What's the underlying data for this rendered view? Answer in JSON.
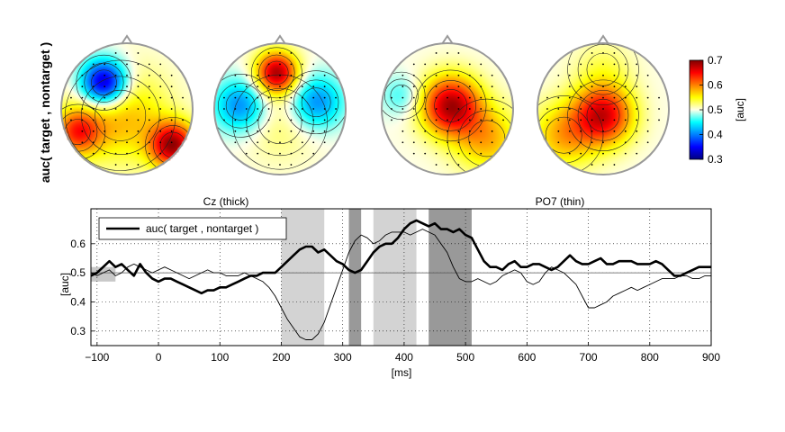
{
  "chart_data": [
    {
      "type": "heatmap",
      "kind": "scalp-topography",
      "ylabel": "auc( target , nontarget )",
      "colorbar": {
        "label": "[auc]",
        "ticks": [
          "0.3",
          "0.4",
          "0.5",
          "0.6",
          "0.7"
        ],
        "range": [
          0.3,
          0.7
        ],
        "colormap": "jet"
      },
      "maps": [
        {
          "blobs": [
            {
              "x": -0.35,
              "y": 0.4,
              "v": 0.3,
              "s": 0.35
            },
            {
              "x": 0.7,
              "y": -0.55,
              "v": 0.68,
              "s": 0.35
            },
            {
              "x": -0.1,
              "y": -0.1,
              "v": 0.58,
              "s": 0.7
            },
            {
              "x": -0.75,
              "y": -0.35,
              "v": 0.62,
              "s": 0.35
            }
          ]
        },
        {
          "blobs": [
            {
              "x": -0.05,
              "y": 0.55,
              "v": 0.68,
              "s": 0.32
            },
            {
              "x": -0.6,
              "y": 0.05,
              "v": 0.4,
              "s": 0.4
            },
            {
              "x": 0.55,
              "y": 0.1,
              "v": 0.4,
              "s": 0.4
            },
            {
              "x": 0.0,
              "y": -0.2,
              "v": 0.53,
              "s": 0.6
            }
          ]
        },
        {
          "blobs": [
            {
              "x": 0.05,
              "y": 0.05,
              "v": 0.68,
              "s": 0.45
            },
            {
              "x": -0.7,
              "y": 0.2,
              "v": 0.46,
              "s": 0.3
            },
            {
              "x": 0.6,
              "y": -0.45,
              "v": 0.58,
              "s": 0.5
            }
          ]
        },
        {
          "blobs": [
            {
              "x": 0.0,
              "y": -0.1,
              "v": 0.66,
              "s": 0.45
            },
            {
              "x": 0.0,
              "y": 0.6,
              "v": 0.53,
              "s": 0.45
            },
            {
              "x": -0.6,
              "y": -0.4,
              "v": 0.58,
              "s": 0.5
            }
          ]
        }
      ]
    },
    {
      "type": "line",
      "titles": [
        "Cz (thick)",
        "PO7 (thin)"
      ],
      "xlabel": "[ms]",
      "ylabel": "[auc]",
      "xlim": [
        -110,
        900
      ],
      "ylim": [
        0.25,
        0.72
      ],
      "xticks": [
        -100,
        0,
        100,
        200,
        300,
        400,
        500,
        600,
        700,
        800,
        900
      ],
      "yticks": [
        0.3,
        0.4,
        0.5,
        0.6
      ],
      "grid": true,
      "legend": {
        "location": "top-left",
        "label": "auc( target , nontarget )"
      },
      "reference_line": 0.5,
      "baseline_band": {
        "x": [
          -110,
          -70
        ],
        "y": [
          0.47,
          0.52
        ]
      },
      "shaded_intervals": [
        {
          "x": [
            200,
            270
          ],
          "shade": "light"
        },
        {
          "x": [
            310,
            330
          ],
          "shade": "dark"
        },
        {
          "x": [
            350,
            420
          ],
          "shade": "light"
        },
        {
          "x": [
            440,
            510
          ],
          "shade": "dark"
        }
      ],
      "series": [
        {
          "name": "auc( target , nontarget )",
          "x": [
            -110,
            -100,
            -90,
            -80,
            -70,
            -60,
            -50,
            -40,
            -30,
            -20,
            -10,
            0,
            10,
            20,
            30,
            40,
            50,
            60,
            70,
            80,
            90,
            100,
            110,
            120,
            130,
            140,
            150,
            160,
            170,
            180,
            190,
            200,
            210,
            220,
            230,
            240,
            250,
            260,
            270,
            280,
            290,
            300,
            310,
            320,
            330,
            340,
            350,
            360,
            370,
            380,
            390,
            400,
            410,
            420,
            430,
            440,
            450,
            460,
            470,
            480,
            490,
            500,
            510,
            520,
            530,
            540,
            550,
            560,
            570,
            580,
            590,
            600,
            610,
            620,
            630,
            640,
            650,
            660,
            670,
            680,
            690,
            700,
            710,
            720,
            730,
            740,
            750,
            760,
            770,
            780,
            790,
            800,
            810,
            820,
            830,
            840,
            850,
            860,
            870,
            880,
            890,
            900
          ],
          "values": [
            0.49,
            0.5,
            0.52,
            0.54,
            0.52,
            0.53,
            0.51,
            0.49,
            0.53,
            0.5,
            0.48,
            0.47,
            0.48,
            0.48,
            0.47,
            0.46,
            0.45,
            0.44,
            0.43,
            0.44,
            0.44,
            0.45,
            0.45,
            0.46,
            0.47,
            0.48,
            0.49,
            0.49,
            0.5,
            0.5,
            0.5,
            0.52,
            0.54,
            0.56,
            0.58,
            0.59,
            0.59,
            0.57,
            0.58,
            0.56,
            0.54,
            0.53,
            0.51,
            0.5,
            0.51,
            0.54,
            0.57,
            0.59,
            0.6,
            0.6,
            0.62,
            0.65,
            0.67,
            0.68,
            0.67,
            0.66,
            0.67,
            0.65,
            0.65,
            0.64,
            0.65,
            0.63,
            0.62,
            0.58,
            0.54,
            0.52,
            0.52,
            0.51,
            0.53,
            0.54,
            0.52,
            0.52,
            0.53,
            0.53,
            0.52,
            0.51,
            0.52,
            0.54,
            0.56,
            0.54,
            0.53,
            0.53,
            0.54,
            0.55,
            0.53,
            0.53,
            0.54,
            0.54,
            0.54,
            0.53,
            0.53,
            0.53,
            0.54,
            0.53,
            0.51,
            0.49,
            0.49,
            0.5,
            0.51,
            0.52,
            0.52,
            0.52
          ],
          "line_width": "thick"
        },
        {
          "x": [
            -110,
            -100,
            -90,
            -80,
            -70,
            -60,
            -50,
            -40,
            -30,
            -20,
            -10,
            0,
            10,
            20,
            30,
            40,
            50,
            60,
            70,
            80,
            90,
            100,
            110,
            120,
            130,
            140,
            150,
            160,
            170,
            180,
            190,
            200,
            210,
            220,
            230,
            240,
            250,
            260,
            270,
            280,
            290,
            300,
            310,
            320,
            330,
            340,
            350,
            360,
            370,
            380,
            390,
            400,
            410,
            420,
            430,
            440,
            450,
            460,
            470,
            480,
            490,
            500,
            510,
            520,
            530,
            540,
            550,
            560,
            570,
            580,
            590,
            600,
            610,
            620,
            630,
            640,
            650,
            660,
            670,
            680,
            690,
            700,
            710,
            720,
            730,
            740,
            750,
            760,
            770,
            780,
            790,
            800,
            810,
            820,
            830,
            840,
            850,
            860,
            870,
            880,
            890,
            900
          ],
          "values": [
            0.5,
            0.49,
            0.5,
            0.51,
            0.49,
            0.5,
            0.52,
            0.53,
            0.52,
            0.51,
            0.5,
            0.51,
            0.52,
            0.51,
            0.5,
            0.49,
            0.48,
            0.49,
            0.5,
            0.51,
            0.5,
            0.5,
            0.49,
            0.49,
            0.49,
            0.5,
            0.49,
            0.48,
            0.47,
            0.45,
            0.42,
            0.38,
            0.34,
            0.31,
            0.28,
            0.27,
            0.27,
            0.29,
            0.33,
            0.39,
            0.45,
            0.51,
            0.57,
            0.61,
            0.63,
            0.62,
            0.6,
            0.61,
            0.63,
            0.64,
            0.64,
            0.64,
            0.63,
            0.64,
            0.65,
            0.64,
            0.63,
            0.6,
            0.57,
            0.52,
            0.48,
            0.47,
            0.47,
            0.48,
            0.47,
            0.46,
            0.47,
            0.49,
            0.5,
            0.51,
            0.5,
            0.47,
            0.46,
            0.47,
            0.5,
            0.52,
            0.51,
            0.5,
            0.48,
            0.46,
            0.42,
            0.38,
            0.38,
            0.39,
            0.4,
            0.42,
            0.43,
            0.44,
            0.45,
            0.44,
            0.45,
            0.46,
            0.47,
            0.48,
            0.48,
            0.48,
            0.49,
            0.49,
            0.48,
            0.48,
            0.49,
            0.49
          ],
          "line_width": "thin"
        }
      ]
    }
  ]
}
